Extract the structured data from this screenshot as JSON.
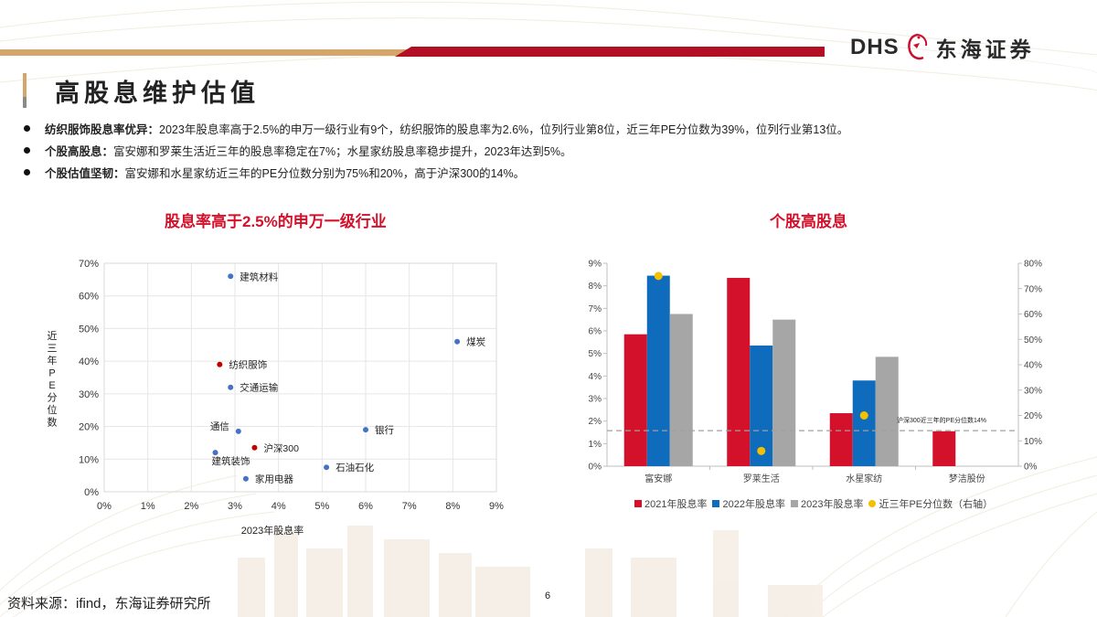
{
  "header": {
    "logo_latin": "DHS",
    "logo_cn": "东海证券",
    "page_title": "高股息维护估值"
  },
  "bullets": [
    {
      "bold": "纺织服饰股息率优异：",
      "text": "2023年股息率高于2.5%的申万一级行业有9个，纺织服饰的股息率为2.6%，位列行业第8位，近三年PE分位数为39%，位列行业第13位。"
    },
    {
      "bold": "个股高股息：",
      "text": "富安娜和罗莱生活近三年的股息率稳定在7%；水星家纺股息率稳步提升，2023年达到5%。"
    },
    {
      "bold": "个股估值坚韧：",
      "text": "富安娜和水星家纺近三年的PE分位数分别为75%和20%，高于沪深300的14%。"
    }
  ],
  "footer": {
    "source": "资料来源：ifind，东海证券研究所",
    "page_number": "6"
  },
  "colors": {
    "brand_red": "#d3112a",
    "gold": "#d4a66a",
    "series_2021": "#d3112a",
    "series_2022": "#0f6cbd",
    "series_2023": "#a6a6a6",
    "pe_dot": "#f5c000",
    "scatter_blue": "#4472c4",
    "scatter_red": "#c00000"
  },
  "chart_data": [
    {
      "type": "scatter",
      "title": "股息率高于2.5%的申万一级行业",
      "xlabel": "2023年股息率",
      "ylabel": "近三年PE分位数",
      "xlim": [
        0,
        9
      ],
      "ylim": [
        0,
        70
      ],
      "x_ticks": [
        "0%",
        "1%",
        "2%",
        "3%",
        "4%",
        "5%",
        "6%",
        "7%",
        "8%",
        "9%"
      ],
      "y_ticks": [
        "0%",
        "10%",
        "20%",
        "30%",
        "40%",
        "50%",
        "60%",
        "70%"
      ],
      "grid": true,
      "points": [
        {
          "label": "建筑材料",
          "x": 2.9,
          "y": 66,
          "highlight": false
        },
        {
          "label": "煤炭",
          "x": 8.1,
          "y": 46,
          "highlight": false
        },
        {
          "label": "纺织服饰",
          "x": 2.65,
          "y": 39,
          "highlight": true
        },
        {
          "label": "交通运输",
          "x": 2.9,
          "y": 32,
          "highlight": false
        },
        {
          "label": "通信",
          "x": 3.08,
          "y": 18.5,
          "highlight": false
        },
        {
          "label": "银行",
          "x": 6.0,
          "y": 19,
          "highlight": false
        },
        {
          "label": "沪深300",
          "x": 3.45,
          "y": 13.5,
          "highlight": true
        },
        {
          "label": "建筑装饰",
          "x": 2.55,
          "y": 12,
          "highlight": false
        },
        {
          "label": "石油石化",
          "x": 5.1,
          "y": 7.5,
          "highlight": false
        },
        {
          "label": "家用电器",
          "x": 3.25,
          "y": 4,
          "highlight": false
        }
      ]
    },
    {
      "type": "bar",
      "title": "个股高股息",
      "categories": [
        "富安娜",
        "罗莱生活",
        "水星家纺",
        "梦洁股份"
      ],
      "series": [
        {
          "name": "2021年股息率",
          "axis": "left",
          "values": [
            5.85,
            8.35,
            2.35,
            1.55
          ]
        },
        {
          "name": "2022年股息率",
          "axis": "left",
          "values": [
            8.45,
            5.35,
            3.8,
            null
          ]
        },
        {
          "name": "2023年股息率",
          "axis": "left",
          "values": [
            6.75,
            6.5,
            4.85,
            null
          ]
        },
        {
          "name": "近三年PE分位数（右轴）",
          "axis": "right",
          "type": "scatter",
          "values": [
            75,
            6,
            20,
            null
          ]
        }
      ],
      "ylim_left": [
        0,
        9
      ],
      "ylim_right": [
        0,
        80
      ],
      "y_ticks_left": [
        "0%",
        "1%",
        "2%",
        "3%",
        "4%",
        "5%",
        "6%",
        "7%",
        "8%",
        "9%"
      ],
      "y_ticks_right": [
        "0%",
        "10%",
        "20%",
        "30%",
        "40%",
        "50%",
        "60%",
        "70%",
        "80%"
      ],
      "reference_line": {
        "axis": "right",
        "value": 14,
        "label": "沪深300近三年的PE分位数14%",
        "style": "dashed"
      },
      "legend_position": "bottom",
      "grid": false
    }
  ]
}
